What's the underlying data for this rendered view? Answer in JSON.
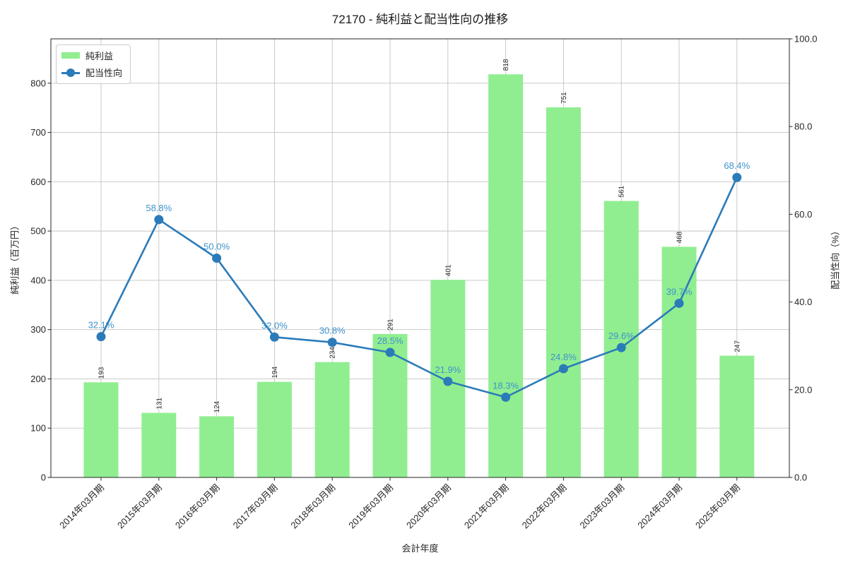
{
  "title": "72170 - 純利益と配当性向の推移",
  "legend": {
    "items": [
      {
        "label": "純利益",
        "type": "bar"
      },
      {
        "label": "配当性向",
        "type": "line"
      }
    ]
  },
  "axes": {
    "x_label": "会計年度",
    "y_left_label": "純利益（百万円）",
    "y_right_label": "配当性向（%）",
    "y_left_ticks": [
      0,
      100,
      200,
      300,
      400,
      500,
      600,
      700,
      800
    ],
    "y_right_ticks": [
      0,
      20,
      40,
      60,
      80,
      100
    ],
    "y_right_tick_labels": [
      "0.0",
      "20.0",
      "40.0",
      "60.0",
      "80.0",
      "100.0"
    ]
  },
  "colors": {
    "bar": "#90EE90",
    "line": "#2b7bb9",
    "annotation": "#3f93cc",
    "grid": "#c3c3c3",
    "spine": "#262626",
    "text": "#262626"
  },
  "chart_data": {
    "type": "bar+line",
    "title": "72170 - 純利益と配当性向の推移",
    "categories": [
      "2014年03月期",
      "2015年03月期",
      "2016年03月期",
      "2017年03月期",
      "2018年03月期",
      "2019年03月期",
      "2020年03月期",
      "2021年03月期",
      "2022年03月期",
      "2023年03月期",
      "2024年03月期",
      "2025年03月期"
    ],
    "series": [
      {
        "name": "純利益",
        "type": "bar",
        "axis": "left",
        "unit": "百万円",
        "values": [
          193,
          131,
          124,
          194,
          234,
          291,
          401,
          818,
          751,
          561,
          468,
          247
        ]
      },
      {
        "name": "配当性向",
        "type": "line",
        "axis": "right",
        "unit": "%",
        "values": [
          32.1,
          58.8,
          50.0,
          32.0,
          30.8,
          28.5,
          21.9,
          18.3,
          24.8,
          29.6,
          39.7,
          68.4
        ]
      }
    ],
    "xlabel": "会計年度",
    "ylabel_left": "純利益（百万円）",
    "ylabel_right": "配当性向（%）",
    "ylim_left": [
      0,
      890
    ],
    "ylim_right": [
      0,
      100
    ],
    "grid": true,
    "legend_position": "upper left"
  }
}
